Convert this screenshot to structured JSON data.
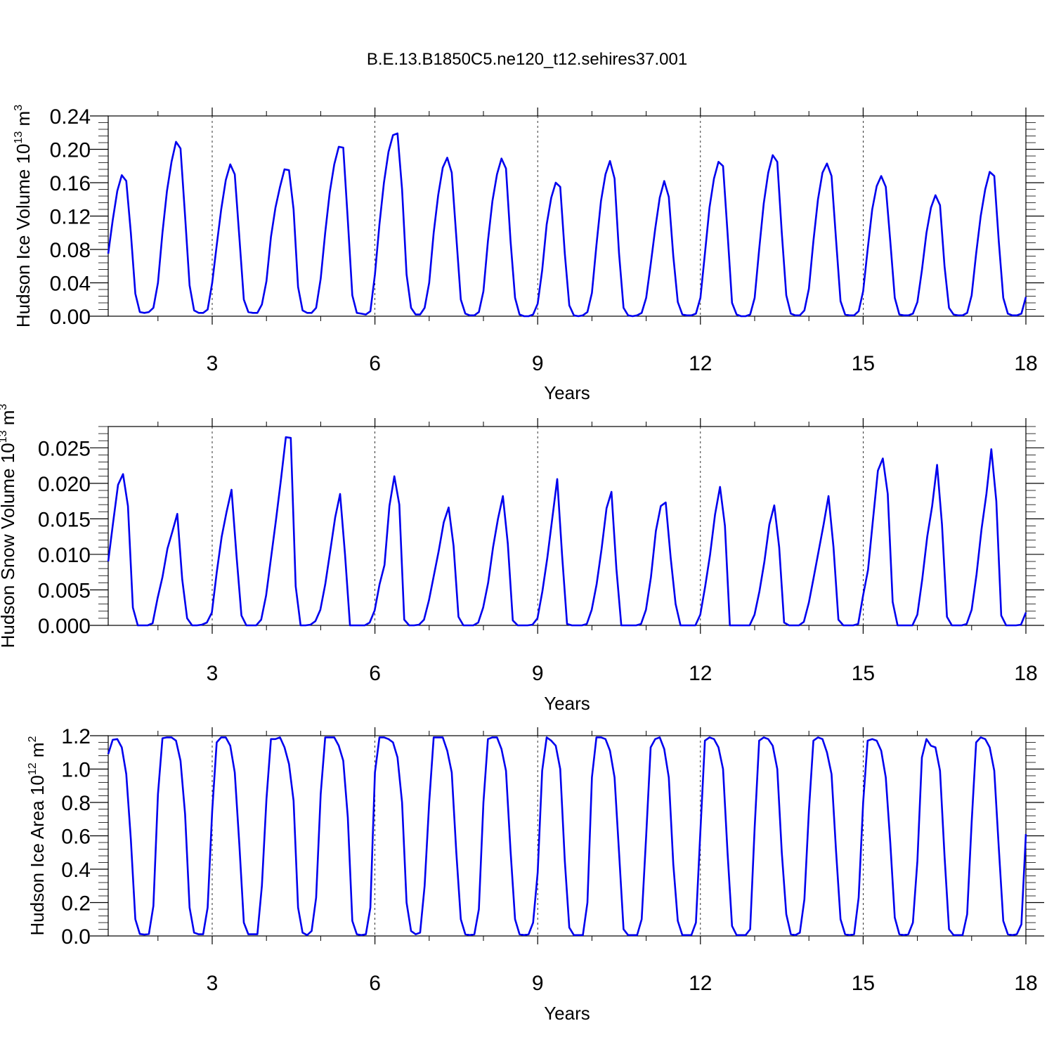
{
  "title": "B.E.13.B1850C5.ne120_t12.sehires37.001",
  "line_color": "#0000ee",
  "chart_data": [
    {
      "type": "line",
      "id": "ice_volume",
      "ylabel_main": "Hudson Ice Volume 10",
      "ylabel_exp": "13",
      "ylabel_unit": " m",
      "ylabel_unit_exp": "3",
      "xlabel": "Years",
      "xlim": [
        1.083,
        18.0
      ],
      "ylim": [
        0.0,
        0.24
      ],
      "x_ticks": [
        3,
        6,
        9,
        12,
        15,
        18
      ],
      "y_ticks": [
        0.0,
        0.04,
        0.08,
        0.12,
        0.16,
        0.2,
        0.24
      ],
      "y_tick_labels": [
        "0.00",
        "0.04",
        "0.08",
        "0.12",
        "0.16",
        "0.20",
        "0.24"
      ],
      "grid": "vertical dashed at x ticks",
      "series": [
        {
          "values": [
            0.075,
            0.115,
            0.15,
            0.169,
            0.162,
            0.1,
            0.027,
            0.005,
            0.004,
            0.005,
            0.01,
            0.04,
            0.1,
            0.15,
            0.185,
            0.209,
            0.201,
            0.12,
            0.037,
            0.007,
            0.004,
            0.004,
            0.008,
            0.04,
            0.085,
            0.128,
            0.163,
            0.182,
            0.17,
            0.095,
            0.02,
            0.005,
            0.004,
            0.004,
            0.014,
            0.042,
            0.095,
            0.13,
            0.155,
            0.176,
            0.175,
            0.128,
            0.035,
            0.007,
            0.004,
            0.004,
            0.01,
            0.045,
            0.1,
            0.148,
            0.182,
            0.203,
            0.202,
            0.115,
            0.025,
            0.004,
            0.003,
            0.002,
            0.006,
            0.05,
            0.11,
            0.16,
            0.197,
            0.217,
            0.219,
            0.152,
            0.05,
            0.01,
            0.002,
            0.002,
            0.01,
            0.04,
            0.1,
            0.145,
            0.178,
            0.19,
            0.172,
            0.095,
            0.02,
            0.003,
            0.001,
            0.001,
            0.005,
            0.03,
            0.09,
            0.138,
            0.17,
            0.189,
            0.177,
            0.09,
            0.022,
            0.002,
            0.0,
            0.0,
            0.002,
            0.015,
            0.055,
            0.11,
            0.142,
            0.16,
            0.155,
            0.075,
            0.013,
            0.001,
            0.0,
            0.001,
            0.005,
            0.028,
            0.085,
            0.138,
            0.17,
            0.186,
            0.165,
            0.075,
            0.01,
            0.001,
            0.0,
            0.001,
            0.004,
            0.022,
            0.062,
            0.105,
            0.142,
            0.162,
            0.143,
            0.072,
            0.017,
            0.002,
            0.001,
            0.001,
            0.003,
            0.022,
            0.075,
            0.13,
            0.165,
            0.185,
            0.18,
            0.1,
            0.016,
            0.002,
            0.0,
            0.0,
            0.002,
            0.022,
            0.08,
            0.135,
            0.172,
            0.193,
            0.185,
            0.1,
            0.025,
            0.003,
            0.001,
            0.001,
            0.007,
            0.033,
            0.09,
            0.14,
            0.172,
            0.183,
            0.168,
            0.092,
            0.018,
            0.002,
            0.001,
            0.001,
            0.006,
            0.03,
            0.08,
            0.128,
            0.156,
            0.168,
            0.155,
            0.09,
            0.022,
            0.002,
            0.001,
            0.001,
            0.003,
            0.017,
            0.055,
            0.1,
            0.13,
            0.145,
            0.133,
            0.06,
            0.01,
            0.002,
            0.001,
            0.001,
            0.004,
            0.025,
            0.075,
            0.12,
            0.152,
            0.173,
            0.168,
            0.09,
            0.022,
            0.003,
            0.001,
            0.001,
            0.003,
            0.023
          ]
        }
      ]
    },
    {
      "type": "line",
      "id": "snow_volume",
      "ylabel_main": "Hudson Snow Volume 10",
      "ylabel_exp": "13",
      "ylabel_unit": " m",
      "ylabel_unit_exp": "3",
      "xlabel": "Years",
      "xlim": [
        1.083,
        18.0
      ],
      "ylim": [
        0.0,
        0.028
      ],
      "x_ticks": [
        3,
        6,
        9,
        12,
        15,
        18
      ],
      "y_ticks": [
        0.0,
        0.005,
        0.01,
        0.015,
        0.02,
        0.025
      ],
      "y_tick_labels": [
        "0.000",
        "0.005",
        "0.010",
        "0.015",
        "0.020",
        "0.025"
      ],
      "grid": "vertical dashed at x ticks",
      "series": [
        {
          "values": [
            0.009,
            0.0145,
            0.0198,
            0.0213,
            0.0168,
            0.0025,
            0.0,
            0.0,
            0.0,
            0.0003,
            0.0038,
            0.0068,
            0.0108,
            0.0132,
            0.0157,
            0.0065,
            0.001,
            0.0,
            0.0,
            0.0001,
            0.0004,
            0.0018,
            0.0075,
            0.0125,
            0.016,
            0.0191,
            0.0098,
            0.0014,
            0.0,
            0.0,
            0.0,
            0.0008,
            0.0042,
            0.0095,
            0.0148,
            0.0205,
            0.0265,
            0.0264,
            0.0055,
            0.0,
            0.0,
            0.0001,
            0.0006,
            0.0022,
            0.0058,
            0.0105,
            0.0152,
            0.0185,
            0.01,
            0.0,
            0.0,
            0.0,
            0.0,
            0.0004,
            0.0021,
            0.0058,
            0.0085,
            0.0168,
            0.021,
            0.017,
            0.0008,
            0.0,
            0.0,
            0.0001,
            0.0008,
            0.0035,
            0.007,
            0.0105,
            0.0145,
            0.0166,
            0.0112,
            0.0012,
            0.0,
            0.0,
            0.0,
            0.0004,
            0.0025,
            0.006,
            0.011,
            0.015,
            0.0182,
            0.0115,
            0.0007,
            0.0,
            0.0,
            0.0,
            0.0001,
            0.001,
            0.0048,
            0.0095,
            0.015,
            0.0206,
            0.0098,
            0.0002,
            0.0,
            0.0,
            0.0,
            0.0002,
            0.0022,
            0.0058,
            0.0108,
            0.0165,
            0.0188,
            0.008,
            0.0,
            0.0,
            0.0,
            0.0,
            0.0002,
            0.0022,
            0.0068,
            0.0133,
            0.0168,
            0.0173,
            0.0095,
            0.003,
            0.0,
            0.0,
            0.0,
            0.0,
            0.0015,
            0.0055,
            0.01,
            0.0156,
            0.0195,
            0.014,
            0.0,
            0.0,
            0.0,
            0.0,
            0.0,
            0.0015,
            0.0048,
            0.009,
            0.0142,
            0.0169,
            0.011,
            0.0004,
            0.0,
            0.0,
            0.0,
            0.0005,
            0.0032,
            0.0068,
            0.0105,
            0.0142,
            0.0182,
            0.011,
            0.0008,
            0.0,
            0.0,
            0.0,
            0.0002,
            0.0042,
            0.0078,
            0.0148,
            0.0218,
            0.0235,
            0.0185,
            0.0033,
            0.0,
            0.0,
            0.0,
            0.0,
            0.0015,
            0.0065,
            0.0125,
            0.0168,
            0.0226,
            0.0142,
            0.0012,
            0.0,
            0.0,
            0.0,
            0.0002,
            0.0022,
            0.0072,
            0.0135,
            0.0185,
            0.0248,
            0.0175,
            0.0014,
            0.0,
            0.0,
            0.0,
            0.0001,
            0.0018
          ]
        }
      ]
    },
    {
      "type": "line",
      "id": "ice_area",
      "ylabel_main": "Hudson Ice Area 10",
      "ylabel_exp": "12",
      "ylabel_unit": " m",
      "ylabel_unit_exp": "2",
      "xlabel": "Years",
      "xlim": [
        1.083,
        18.0
      ],
      "ylim": [
        0.0,
        1.2
      ],
      "x_ticks": [
        3,
        6,
        9,
        12,
        15,
        18
      ],
      "y_ticks": [
        0.0,
        0.2,
        0.4,
        0.6,
        0.8,
        1.0,
        1.2
      ],
      "y_tick_labels": [
        "0.0",
        "0.2",
        "0.4",
        "0.6",
        "0.8",
        "1.0",
        "1.2"
      ],
      "grid": "vertical dashed at x ticks",
      "series": [
        {
          "values": [
            1.09,
            1.175,
            1.18,
            1.13,
            0.97,
            0.58,
            0.1,
            0.012,
            0.008,
            0.012,
            0.18,
            0.85,
            1.185,
            1.19,
            1.19,
            1.17,
            1.05,
            0.73,
            0.17,
            0.02,
            0.01,
            0.01,
            0.17,
            0.75,
            1.16,
            1.19,
            1.19,
            1.14,
            0.98,
            0.55,
            0.08,
            0.01,
            0.01,
            0.01,
            0.3,
            0.82,
            1.18,
            1.18,
            1.19,
            1.13,
            1.03,
            0.81,
            0.17,
            0.02,
            0.005,
            0.03,
            0.23,
            0.85,
            1.19,
            1.19,
            1.19,
            1.14,
            1.05,
            0.71,
            0.09,
            0.01,
            0.005,
            0.01,
            0.17,
            0.98,
            1.19,
            1.19,
            1.18,
            1.16,
            1.07,
            0.8,
            0.2,
            0.03,
            0.01,
            0.02,
            0.3,
            0.8,
            1.19,
            1.19,
            1.19,
            1.11,
            0.98,
            0.5,
            0.1,
            0.01,
            0.005,
            0.01,
            0.16,
            0.8,
            1.18,
            1.19,
            1.19,
            1.12,
            0.99,
            0.51,
            0.1,
            0.01,
            0.005,
            0.01,
            0.08,
            0.38,
            0.99,
            1.19,
            1.17,
            1.14,
            1.0,
            0.45,
            0.05,
            0.005,
            0.005,
            0.005,
            0.2,
            0.95,
            1.19,
            1.19,
            1.18,
            1.11,
            0.95,
            0.5,
            0.04,
            0.005,
            0.005,
            0.005,
            0.1,
            0.6,
            1.13,
            1.18,
            1.19,
            1.12,
            0.95,
            0.43,
            0.09,
            0.005,
            0.005,
            0.005,
            0.08,
            0.63,
            1.17,
            1.19,
            1.18,
            1.13,
            1.0,
            0.5,
            0.06,
            0.005,
            0.005,
            0.005,
            0.04,
            0.65,
            1.17,
            1.19,
            1.18,
            1.14,
            1.0,
            0.5,
            0.13,
            0.01,
            0.005,
            0.02,
            0.22,
            0.75,
            1.17,
            1.19,
            1.18,
            1.1,
            0.97,
            0.51,
            0.1,
            0.01,
            0.005,
            0.01,
            0.23,
            0.8,
            1.17,
            1.18,
            1.17,
            1.11,
            0.95,
            0.56,
            0.11,
            0.01,
            0.005,
            0.01,
            0.08,
            0.45,
            1.07,
            1.18,
            1.14,
            1.13,
            0.99,
            0.48,
            0.04,
            0.005,
            0.005,
            0.005,
            0.13,
            0.68,
            1.16,
            1.19,
            1.18,
            1.13,
            0.99,
            0.53,
            0.09,
            0.01,
            0.005,
            0.01,
            0.07,
            0.61
          ]
        }
      ]
    }
  ]
}
